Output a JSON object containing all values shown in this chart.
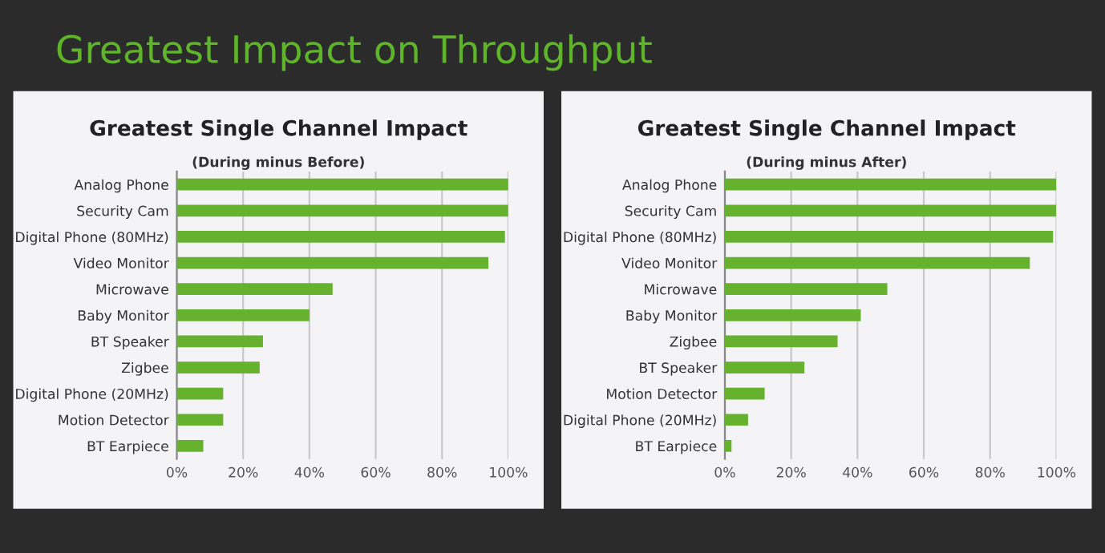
{
  "chart_data": [
    {
      "type": "bar",
      "orientation": "horizontal",
      "title": "Greatest Single Channel Impact",
      "subtitle": "(During minus Before)",
      "annotations": [
        "Greatest Impact on Throughput"
      ],
      "categories": [
        "Analog Phone",
        "Security Cam",
        "Digital Phone (80MHz)",
        "Video Monitor",
        "Microwave",
        "Baby Monitor",
        "BT Speaker",
        "Zigbee",
        "Digital Phone (20MHz)",
        "Motion Detector",
        "BT Earpiece"
      ],
      "values": [
        100,
        100,
        99,
        94,
        47,
        40,
        26,
        25,
        14,
        14,
        8
      ],
      "color": "#66b22e",
      "xlim": [
        0,
        100
      ],
      "xticks": [
        {
          "value": 0,
          "label": "0%"
        },
        {
          "value": 20,
          "label": "20%"
        },
        {
          "value": 40,
          "label": "40%"
        },
        {
          "value": 60,
          "label": "60%"
        },
        {
          "value": 80,
          "label": "80%"
        },
        {
          "value": 100,
          "label": "100%"
        }
      ],
      "grid": "x"
    },
    {
      "type": "bar",
      "orientation": "horizontal",
      "title": "Greatest Single Channel Impact",
      "subtitle": "(During minus After)",
      "categories": [
        "Analog Phone",
        "Security Cam",
        "Digital Phone (80MHz)",
        "Video Monitor",
        "Microwave",
        "Baby Monitor",
        "Zigbee",
        "BT Speaker",
        "Motion Detector",
        "Digital Phone (20MHz)",
        "BT Earpiece"
      ],
      "values": [
        100,
        100,
        99,
        92,
        49,
        41,
        34,
        24,
        12,
        7,
        2
      ],
      "color": "#66b22e",
      "xlim": [
        0,
        100
      ],
      "xticks": [
        {
          "value": 0,
          "label": "0%"
        },
        {
          "value": 20,
          "label": "20%"
        },
        {
          "value": 40,
          "label": "40%"
        },
        {
          "value": 60,
          "label": "60%"
        },
        {
          "value": 80,
          "label": "80%"
        },
        {
          "value": 100,
          "label": "100%"
        }
      ],
      "grid": "x"
    }
  ]
}
